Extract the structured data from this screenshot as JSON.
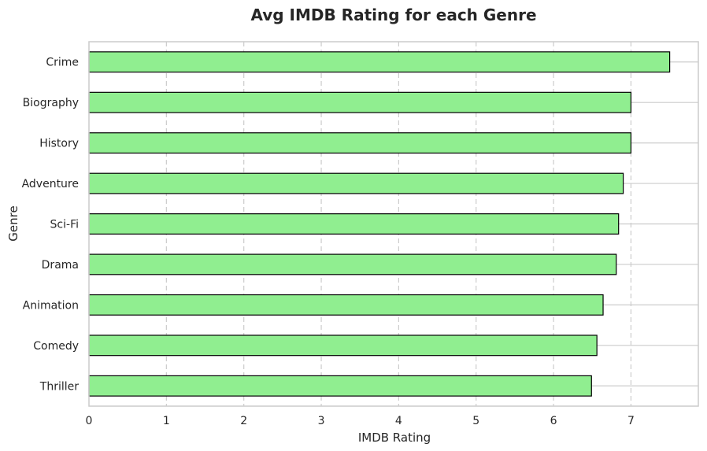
{
  "chart_data": {
    "type": "bar",
    "orientation": "horizontal",
    "title": "Avg IMDB Rating for each Genre",
    "xlabel": "IMDB Rating",
    "ylabel": "Genre",
    "categories": [
      "Crime",
      "Biography",
      "History",
      "Adventure",
      "Sci-Fi",
      "Drama",
      "Animation",
      "Comedy",
      "Thriller"
    ],
    "values": [
      7.5,
      7.0,
      7.0,
      6.9,
      6.84,
      6.81,
      6.64,
      6.56,
      6.49
    ],
    "xlim": [
      0,
      7.87
    ],
    "xticks": [
      "0",
      "1",
      "2",
      "3",
      "4",
      "5",
      "6",
      "7"
    ],
    "grid": true,
    "bar_color": "#90EE90",
    "bar_edge_color": "#000000",
    "grid_color": "#cccccc",
    "frame_color": "#cccccc"
  }
}
